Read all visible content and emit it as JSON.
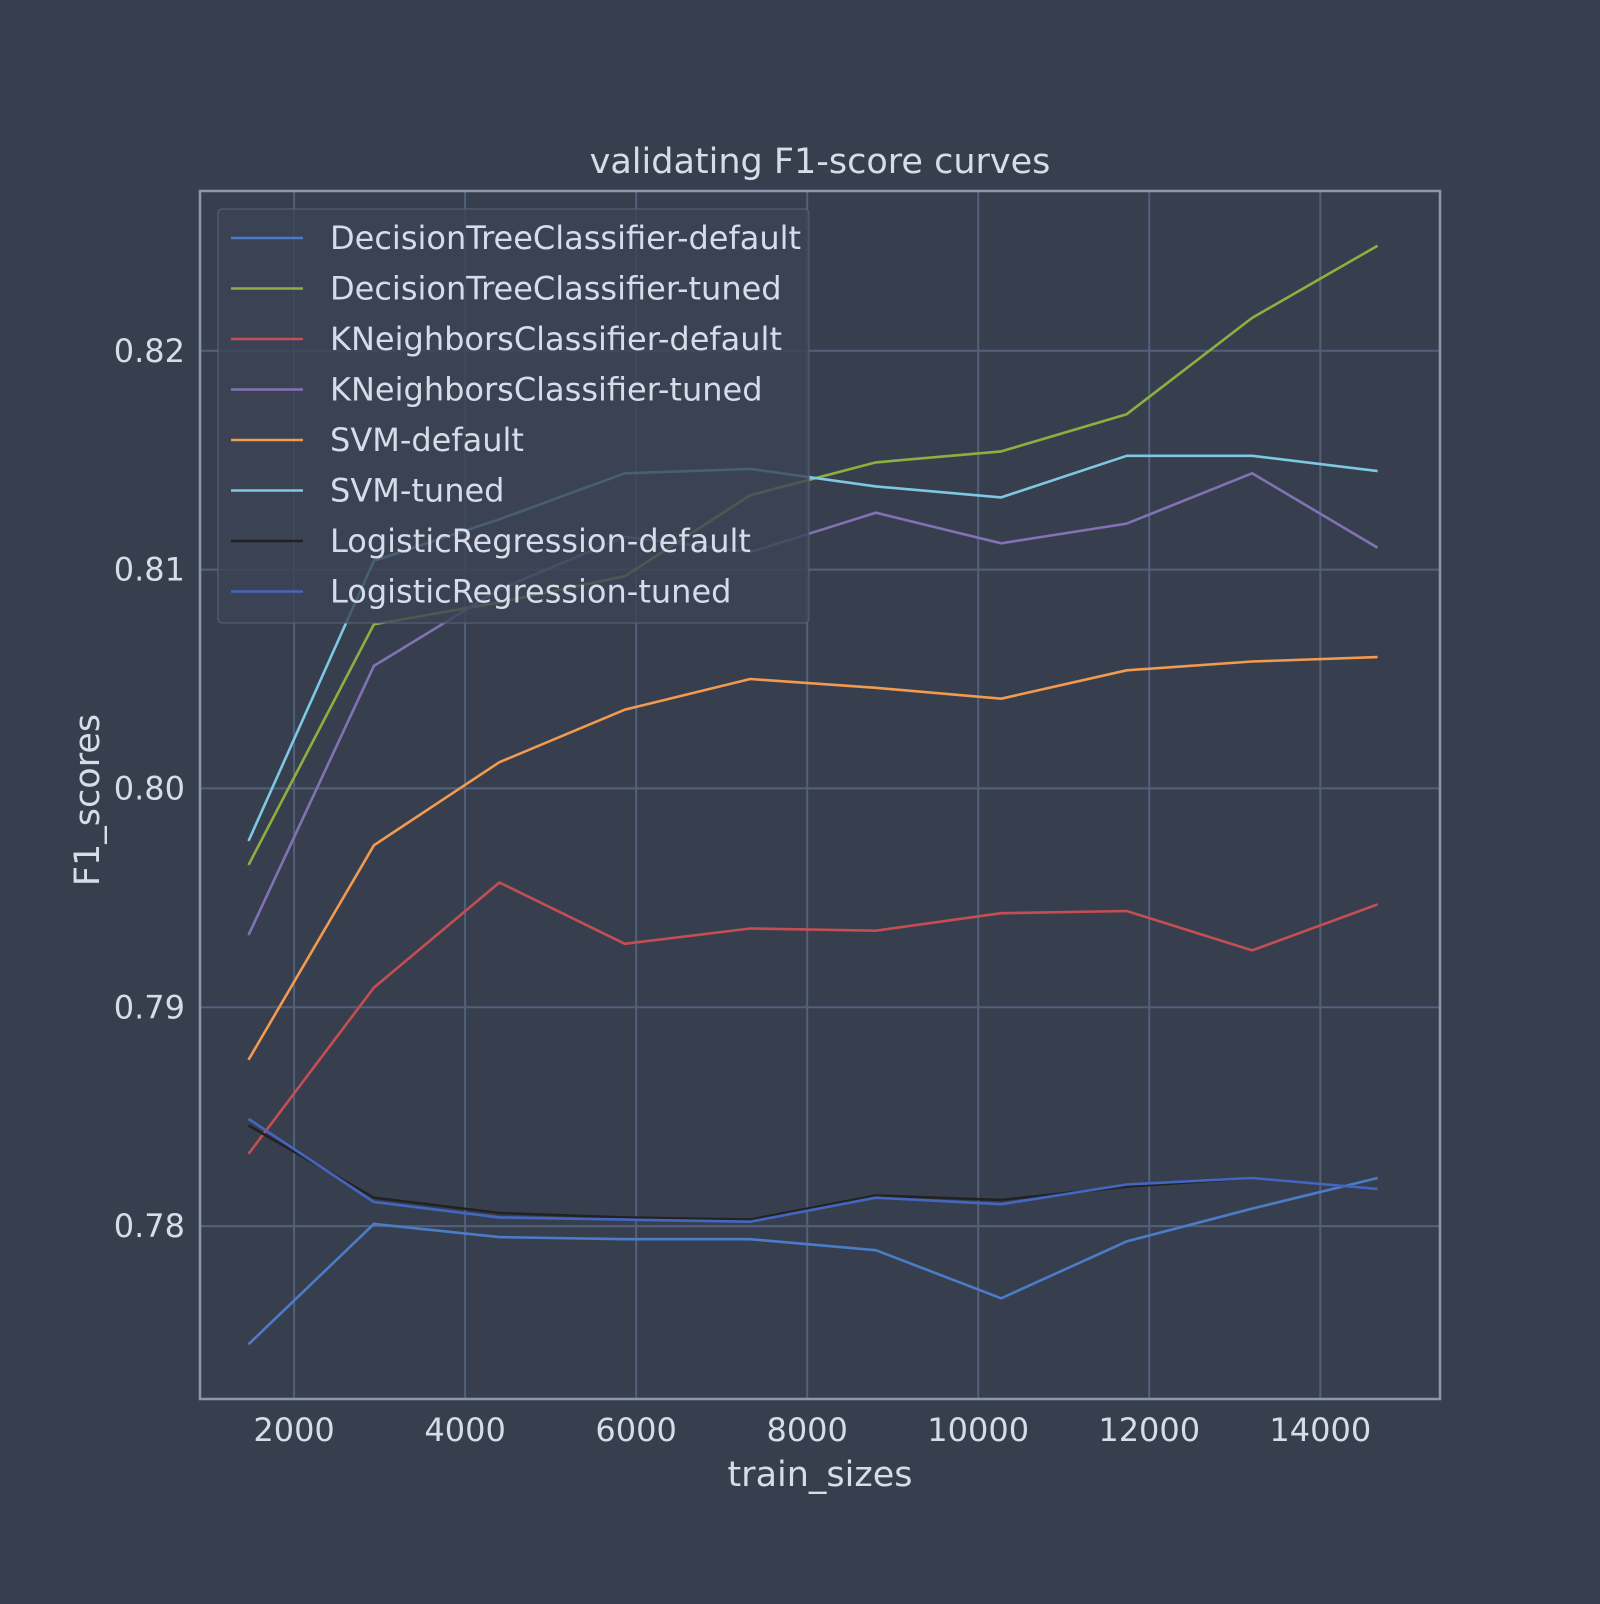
{
  "chart_data": {
    "type": "line",
    "title": "validating F1-score curves",
    "xlabel": "train_sizes",
    "ylabel": "F1_scores",
    "xlim": [
      900,
      15400
    ],
    "ylim": [
      0.7721,
      0.8273
    ],
    "x_ticks": [
      2000,
      4000,
      6000,
      8000,
      10000,
      12000,
      14000
    ],
    "x_tick_labels": [
      "2000",
      "4000",
      "6000",
      "8000",
      "10000",
      "12000",
      "14000"
    ],
    "y_ticks": [
      0.78,
      0.79,
      0.8,
      0.81,
      0.82
    ],
    "y_tick_labels": [
      "0.78",
      "0.79",
      "0.80",
      "0.81",
      "0.82"
    ],
    "grid": true,
    "legend_position": "upper-left",
    "x": [
      1467,
      2934,
      4401,
      5868,
      7335,
      8802,
      10269,
      11736,
      13203,
      14670
    ],
    "series": [
      {
        "name": "DecisionTreeClassifier-default",
        "color": "#4c7cc8",
        "values": [
          0.7746,
          0.7801,
          0.7795,
          0.7794,
          0.7794,
          0.7789,
          0.7767,
          0.7793,
          0.7808,
          0.7822
        ]
      },
      {
        "name": "DecisionTreeClassifier-tuned",
        "color": "#8cb040",
        "values": [
          0.7965,
          0.8075,
          0.8085,
          0.8097,
          0.8134,
          0.8149,
          0.8154,
          0.8171,
          0.8215,
          0.8248
        ]
      },
      {
        "name": "KNeighborsClassifier-default",
        "color": "#c44e52",
        "values": [
          0.7833,
          0.7909,
          0.7957,
          0.7929,
          0.7936,
          0.7935,
          0.7943,
          0.7944,
          0.7926,
          0.7947
        ]
      },
      {
        "name": "KNeighborsClassifier-tuned",
        "color": "#8172b3",
        "values": [
          0.7933,
          0.8056,
          0.8091,
          0.8115,
          0.8108,
          0.8126,
          0.8112,
          0.8121,
          0.8144,
          0.811
        ]
      },
      {
        "name": "SVM-default",
        "color": "#f29a4f",
        "values": [
          0.7876,
          0.7974,
          0.8012,
          0.8036,
          0.805,
          0.8046,
          0.8041,
          0.8054,
          0.8058,
          0.806
        ]
      },
      {
        "name": "SVM-tuned",
        "color": "#7ec8e3",
        "values": [
          0.7976,
          0.8104,
          0.8123,
          0.8144,
          0.8146,
          0.8138,
          0.8133,
          0.8152,
          0.8152,
          0.8145
        ]
      },
      {
        "name": "LogisticRegression-default",
        "color": "#222222",
        "values": [
          0.7846,
          0.7813,
          0.7806,
          0.7804,
          0.7803,
          0.7814,
          0.7812,
          0.7818,
          0.7822,
          0.7817
        ]
      },
      {
        "name": "LogisticRegression-tuned",
        "color": "#4466c0",
        "values": [
          0.7849,
          0.7811,
          0.7804,
          0.7803,
          0.7802,
          0.7813,
          0.781,
          0.7819,
          0.7822,
          0.7817
        ]
      }
    ]
  }
}
